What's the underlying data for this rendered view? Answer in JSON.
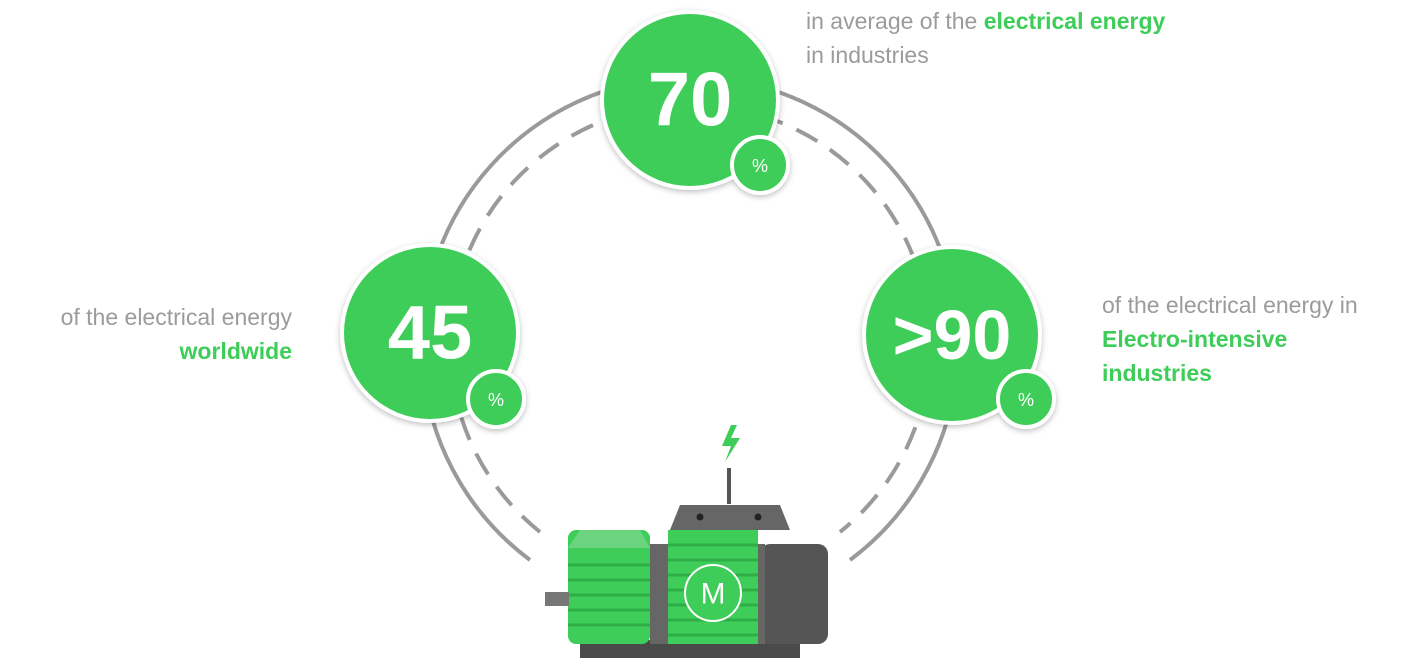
{
  "stats": [
    {
      "value": "70",
      "unit": "%",
      "text": [
        "in average of the ",
        "electrical energy",
        "in industries"
      ]
    },
    {
      "value": "45",
      "unit": "%",
      "text": [
        "of the electrical energy",
        "worldwide"
      ]
    },
    {
      "value": ">90",
      "unit": "%",
      "text": [
        "of the electrical energy in",
        "Electro-intensive",
        "industries"
      ]
    }
  ],
  "motor": {
    "label": "M"
  }
}
